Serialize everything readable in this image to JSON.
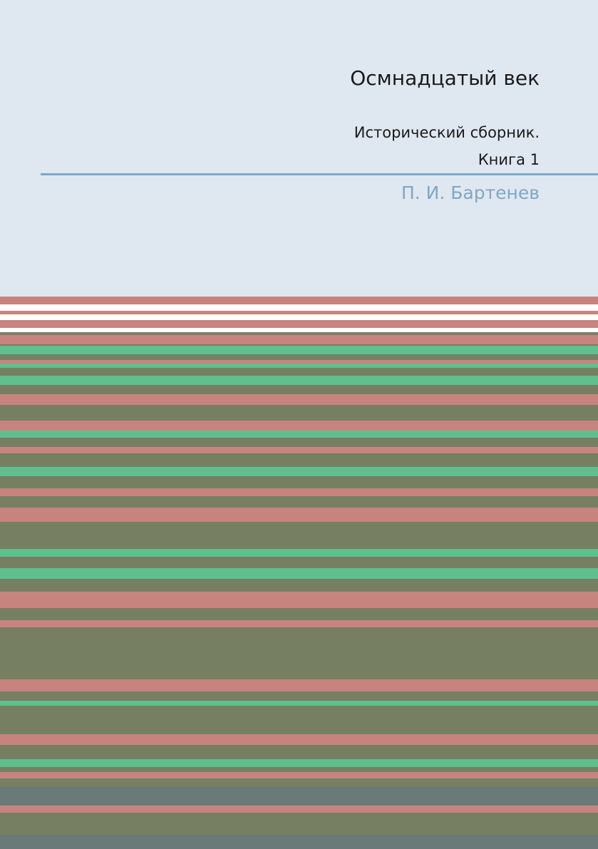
{
  "cover": {
    "title": "Осмнадцатый век",
    "subtitle_lines": [
      "Исторический сборник.",
      "Книга 1"
    ],
    "author": "П. И. Бартенев"
  }
}
